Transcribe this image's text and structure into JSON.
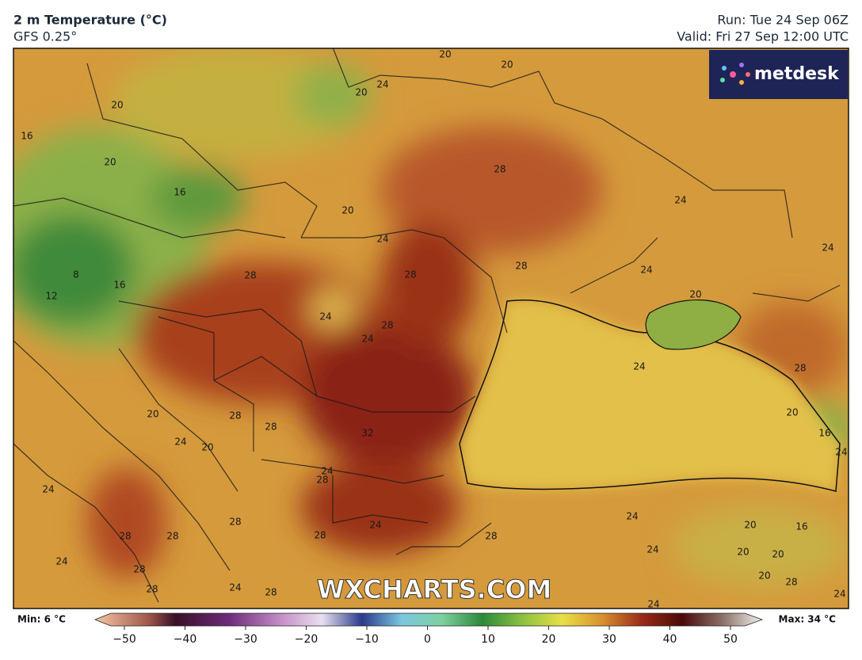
{
  "header": {
    "title": "2 m Temperature (°C)",
    "subtitle": "GFS 0.25°",
    "run": "Run: Tue 24 Sep 06Z",
    "valid": "Valid: Fri 27 Sep 12:00 UTC"
  },
  "logo": "metdesk",
  "watermark": "WXCHARTS.COM",
  "contour_labels": [
    20,
    20,
    20,
    24,
    20,
    16,
    20,
    28,
    16,
    24,
    20,
    24,
    24,
    28,
    28,
    28,
    24,
    8,
    16,
    12,
    20,
    24,
    28,
    24,
    24,
    28,
    20,
    28,
    20,
    28,
    32,
    24,
    20,
    16,
    24,
    24,
    28,
    24,
    28,
    24,
    24,
    20,
    16,
    28,
    28,
    28,
    28,
    24,
    20,
    20,
    24,
    28,
    20,
    28,
    28,
    24,
    28,
    24,
    24
  ],
  "colorbar": {
    "min_label": "Min: 6 °C",
    "max_label": "Max: 34 °C",
    "ticks": [
      {
        "value": -50,
        "label": "−50"
      },
      {
        "value": -40,
        "label": "−40"
      },
      {
        "value": -30,
        "label": "−30"
      },
      {
        "value": -20,
        "label": "−20"
      },
      {
        "value": -10,
        "label": "−10"
      },
      0,
      10,
      20,
      30,
      40,
      50
    ]
  }
}
